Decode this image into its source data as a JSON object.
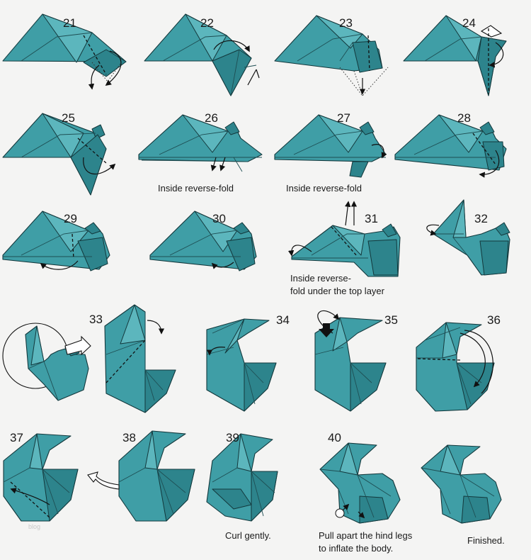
{
  "steps": [
    {
      "number": "21",
      "caption": ""
    },
    {
      "number": "22",
      "caption": ""
    },
    {
      "number": "23",
      "caption": ""
    },
    {
      "number": "24",
      "caption": ""
    },
    {
      "number": "25",
      "caption": ""
    },
    {
      "number": "26",
      "caption": "Inside reverse-fold"
    },
    {
      "number": "27",
      "caption": "Inside reverse-fold"
    },
    {
      "number": "28",
      "caption": ""
    },
    {
      "number": "29",
      "caption": ""
    },
    {
      "number": "30",
      "caption": ""
    },
    {
      "number": "31",
      "caption_lines": [
        "Inside reverse-",
        "fold under the top layer"
      ]
    },
    {
      "number": "32",
      "caption": ""
    },
    {
      "number": "33",
      "caption": ""
    },
    {
      "number": "34",
      "caption": ""
    },
    {
      "number": "35",
      "caption": ""
    },
    {
      "number": "36",
      "caption": ""
    },
    {
      "number": "37",
      "caption": ""
    },
    {
      "number": "38",
      "caption": ""
    },
    {
      "number": "39",
      "caption": "Curl gently."
    },
    {
      "number": "40",
      "caption_lines": [
        "Pull apart the hind legs",
        "to inflate the body."
      ]
    },
    {
      "number": "",
      "caption": "Finished."
    }
  ],
  "watermark": "blog",
  "colors": {
    "paper": "#3f9ea6",
    "paper_light": "#5cb6bd",
    "outline": "#13383c",
    "background": "#f4f4f3"
  }
}
